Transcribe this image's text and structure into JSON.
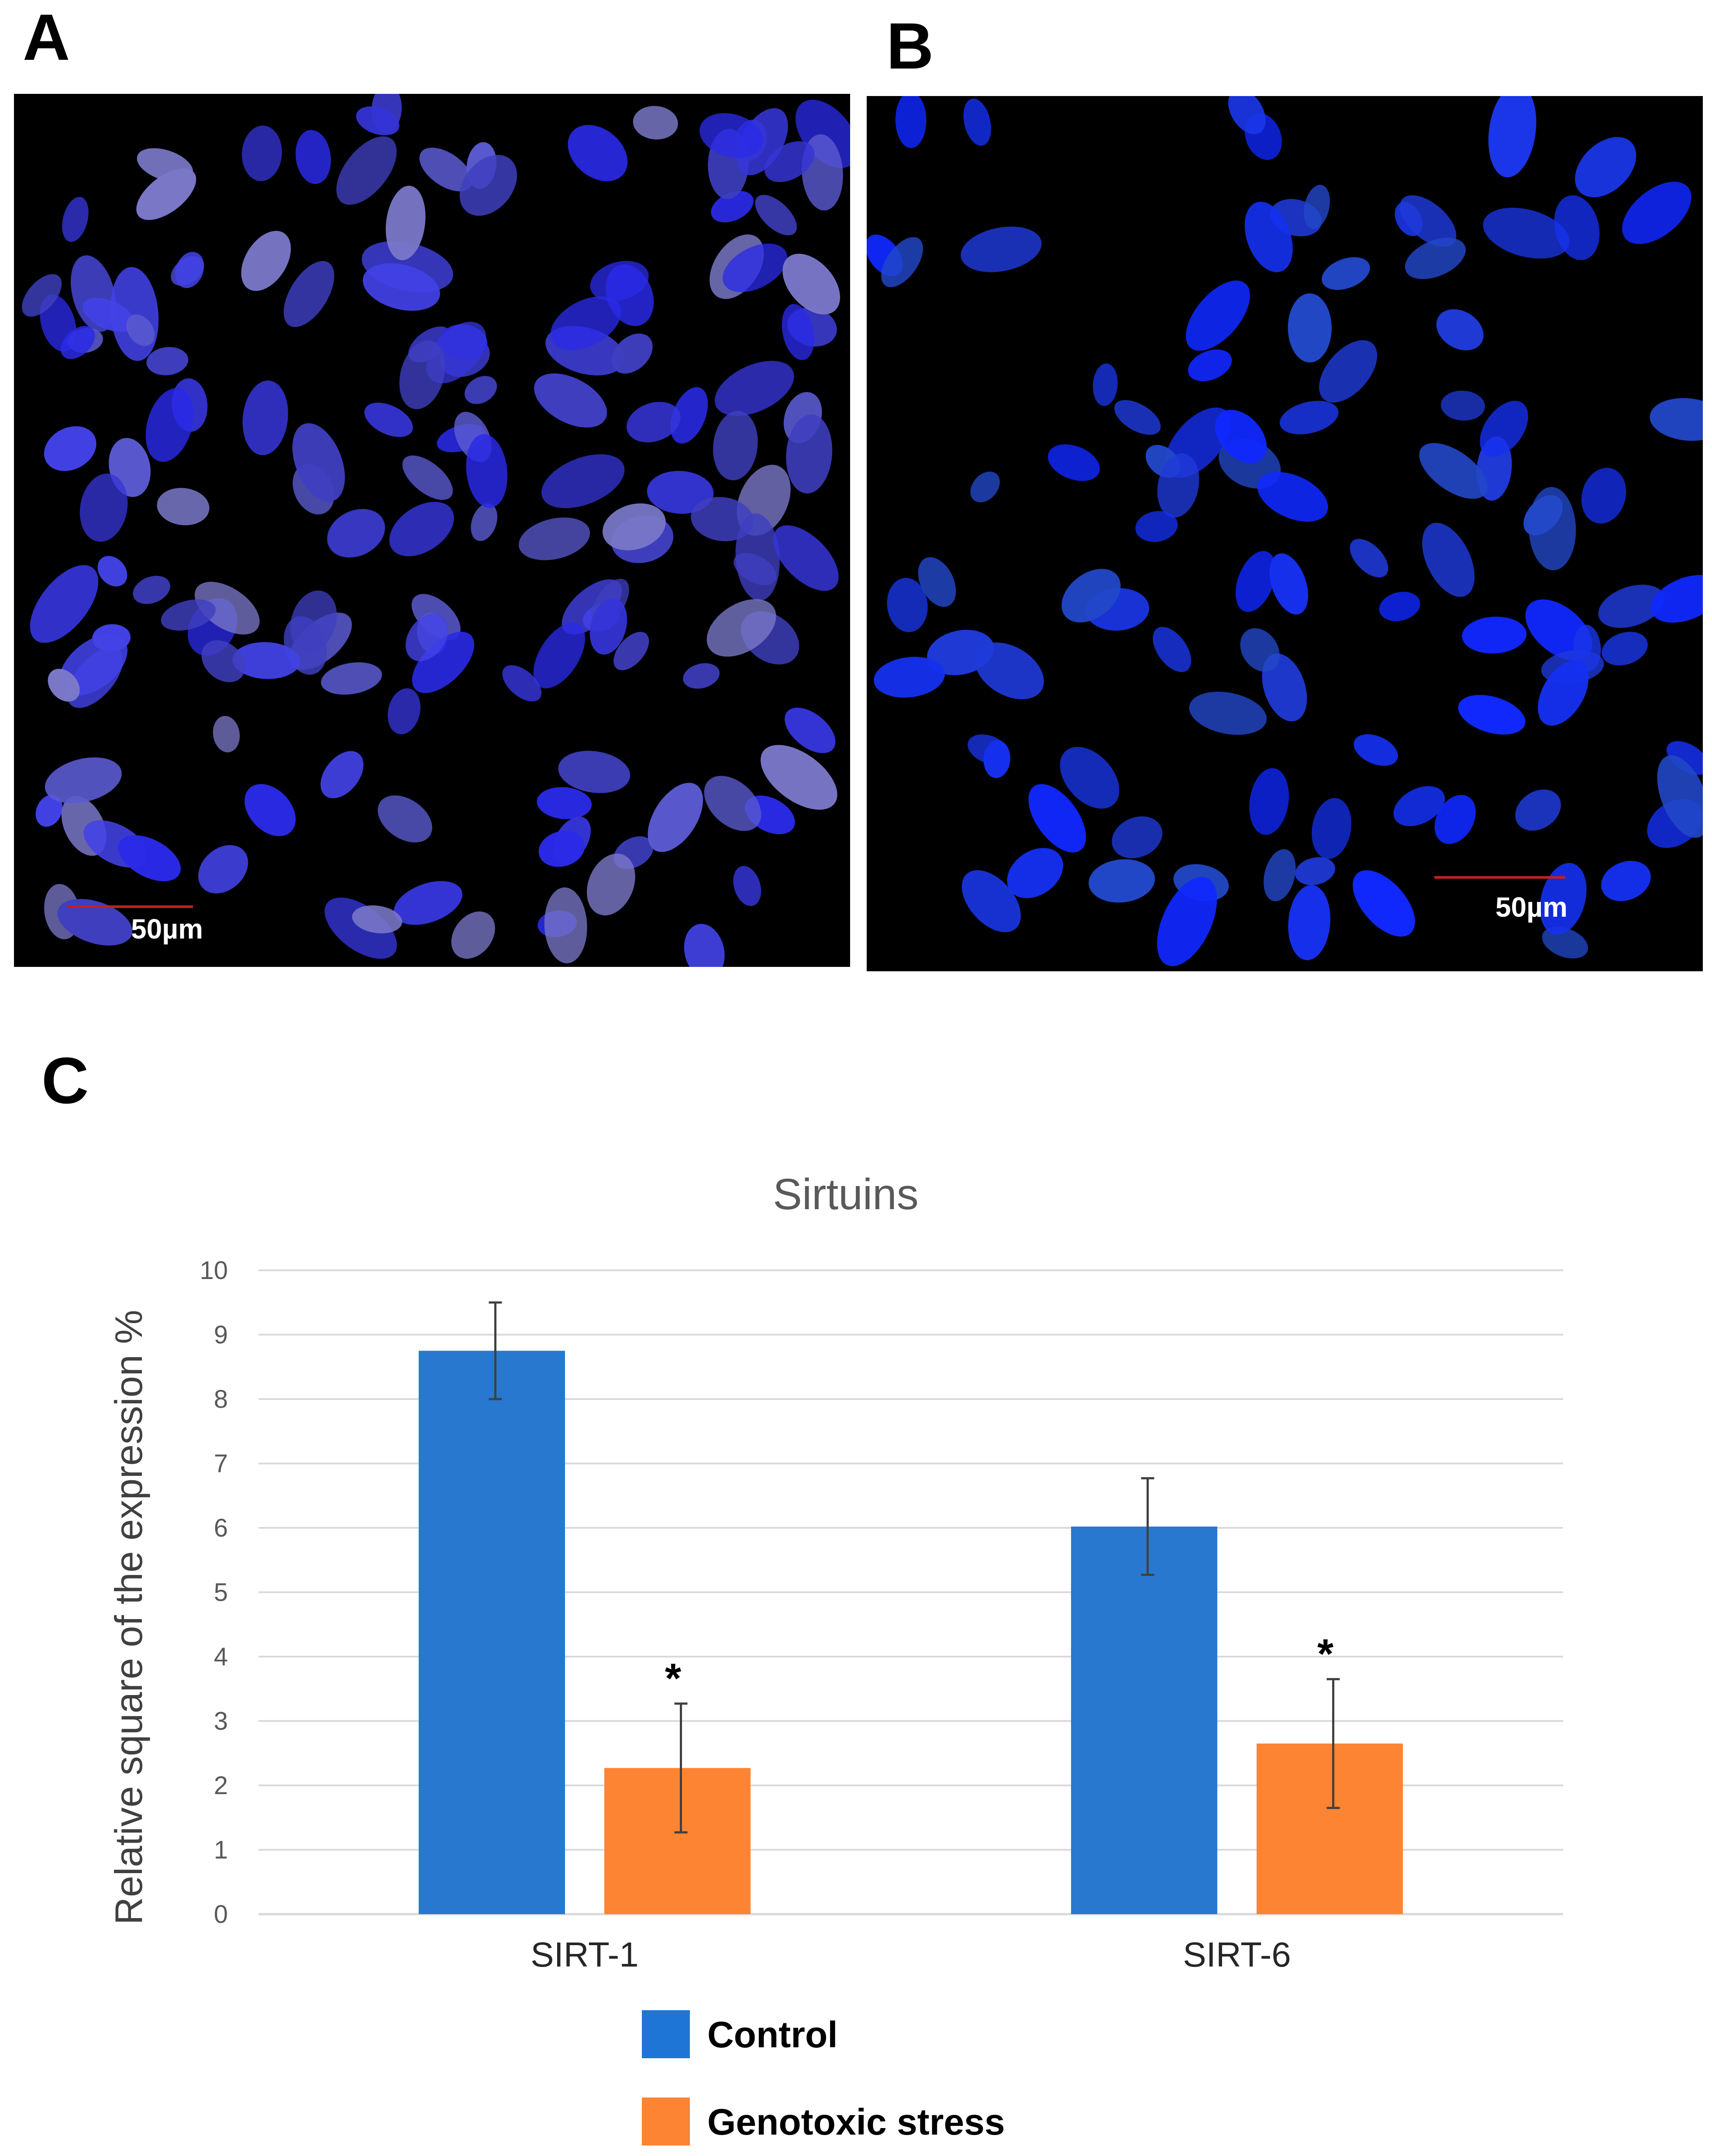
{
  "panels": {
    "a": {
      "label": "A",
      "scale_bar": "50µm"
    },
    "b": {
      "label": "B",
      "scale_bar": "50µm"
    },
    "c": {
      "label": "C"
    }
  },
  "colors": {
    "control": "#2878d0",
    "genotoxic": "#fd8432",
    "nucleus_a": "#3a3ae0",
    "nucleus_b": "#1530f0",
    "scale_bar": "#c02020",
    "grid": "#d9d9d9",
    "axis_text": "#595959",
    "error_bar": "#404040"
  },
  "chart_data": {
    "type": "bar",
    "title": "Sirtuins",
    "ylabel": "Relative square of the expression %",
    "xlabel": "",
    "ylim": [
      0,
      10
    ],
    "yticks": [
      0,
      1,
      2,
      3,
      4,
      5,
      6,
      7,
      8,
      9,
      10
    ],
    "grid": true,
    "legend_position": "bottom",
    "categories": [
      "SIRT-1",
      "SIRT-6"
    ],
    "series": [
      {
        "name": "Control",
        "values": [
          8.75,
          6.02
        ],
        "error": [
          0.75,
          0.75
        ],
        "significance": [
          "",
          ""
        ]
      },
      {
        "name": "Genotoxic stress",
        "values": [
          2.27,
          2.65
        ],
        "error": [
          1.0,
          1.0
        ],
        "significance": [
          "*",
          "*"
        ]
      }
    ]
  }
}
